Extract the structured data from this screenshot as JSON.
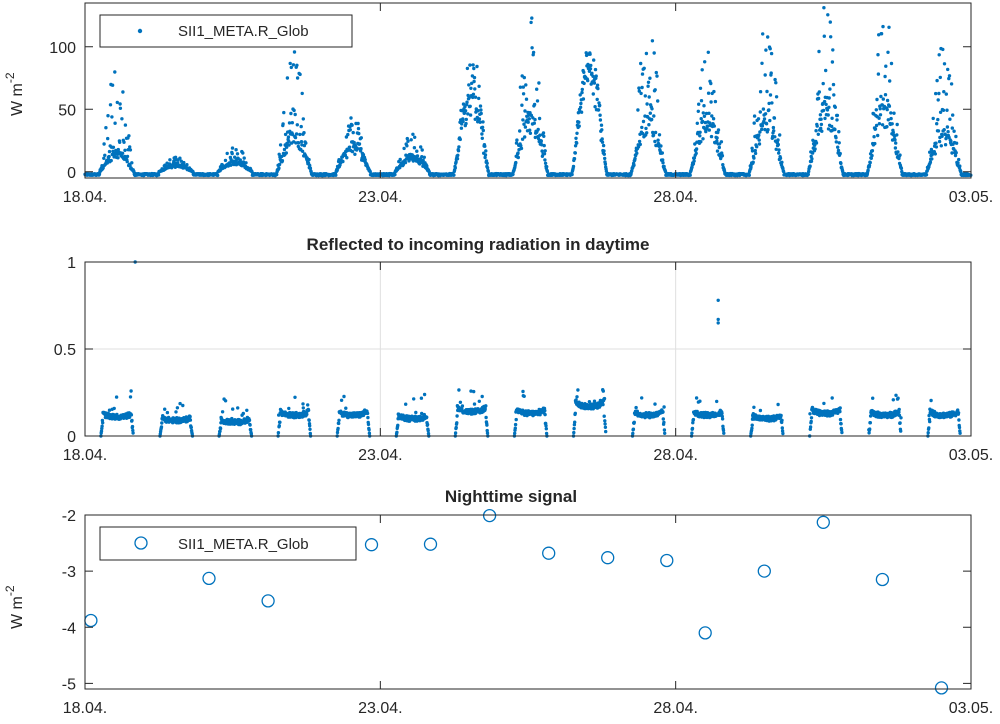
{
  "chart_data": [
    {
      "type": "scatter",
      "title": "",
      "ylabel": "W m",
      "ylabel_sup": "-2",
      "xlim": [
        "18.04.",
        "03.05."
      ],
      "ylim": [
        -5,
        135
      ],
      "x_ticks": [
        "18.04.",
        "23.04.",
        "28.04.",
        "03.05."
      ],
      "y_ticks": [
        0,
        50,
        100
      ],
      "grid": false,
      "legend_position": "top-left",
      "marker": "dot",
      "series": [
        {
          "name": "SII1_META.R_Glob",
          "color": "#0072BD",
          "day_peaks": [
            {
              "date": "18.04.",
              "peak": 85,
              "base": 15
            },
            {
              "date": "19.04.",
              "peak": 12,
              "base": 5
            },
            {
              "date": "20.04.",
              "peak": 22,
              "base": 8
            },
            {
              "date": "21.04.",
              "peak": 100,
              "base": 30
            },
            {
              "date": "22.04.",
              "peak": 48,
              "base": 20
            },
            {
              "date": "23.04.",
              "peak": 32,
              "base": 12
            },
            {
              "date": "24.04.",
              "peak": 100,
              "base": 60
            },
            {
              "date": "25.04.",
              "peak": 128,
              "base": 40
            },
            {
              "date": "26.04.",
              "peak": 102,
              "base": 80
            },
            {
              "date": "27.04.",
              "peak": 122,
              "base": 40
            },
            {
              "date": "28.04.",
              "peak": 105,
              "base": 40
            },
            {
              "date": "29.04.",
              "peak": 120,
              "base": 40
            },
            {
              "date": "30.04.",
              "peak": 135,
              "base": 50
            },
            {
              "date": "01.05.",
              "peak": 133,
              "base": 50
            },
            {
              "date": "02.05.",
              "peak": 107,
              "base": 30
            }
          ]
        }
      ]
    },
    {
      "type": "scatter",
      "title": "Reflected to incoming radiation in daytime",
      "xlim": [
        "18.04.",
        "03.05."
      ],
      "ylim": [
        0,
        1
      ],
      "x_ticks": [
        "18.04.",
        "23.04.",
        "28.04.",
        "03.05."
      ],
      "y_ticks": [
        0,
        0.5,
        1
      ],
      "grid": true,
      "marker": "dot",
      "series": [
        {
          "color": "#0072BD",
          "day_arcs": [
            {
              "date": "18.04.",
              "level": 0.11
            },
            {
              "date": "19.04.",
              "level": 0.09
            },
            {
              "date": "20.04.",
              "level": 0.08
            },
            {
              "date": "21.04.",
              "level": 0.12
            },
            {
              "date": "22.04.",
              "level": 0.12
            },
            {
              "date": "23.04.",
              "level": 0.1
            },
            {
              "date": "24.04.",
              "level": 0.14
            },
            {
              "date": "25.04.",
              "level": 0.13
            },
            {
              "date": "26.04.",
              "level": 0.17
            },
            {
              "date": "27.04.",
              "level": 0.12
            },
            {
              "date": "28.04.",
              "level": 0.12
            },
            {
              "date": "29.04.",
              "level": 0.1
            },
            {
              "date": "30.04.",
              "level": 0.13
            },
            {
              "date": "01.05.",
              "level": 0.12
            },
            {
              "date": "02.05.",
              "level": 0.12
            }
          ],
          "outliers": [
            {
              "x": "18.04. + 0.85 d",
              "y": 1.0
            },
            {
              "x": "28.04. + 0.72 d",
              "y": 0.78
            },
            {
              "x": "28.04. + 0.72 d",
              "y": 0.67
            },
            {
              "x": "28.04. + 0.72 d",
              "y": 0.65
            }
          ]
        }
      ]
    },
    {
      "type": "scatter",
      "title": "Nighttime signal",
      "ylabel": "W m",
      "ylabel_sup": "-2",
      "xlim": [
        "18.04.",
        "03.05."
      ],
      "ylim": [
        -5.1,
        -2
      ],
      "x_ticks": [
        "18.04.",
        "23.04.",
        "28.04.",
        "03.05."
      ],
      "y_ticks": [
        -5,
        -4,
        -3,
        -2
      ],
      "grid": false,
      "legend_position": "top-left",
      "marker": "open-circle",
      "series": [
        {
          "name": "SII1_META.R_Glob",
          "color": "#0072BD",
          "x_days_since_18_04": [
            0.1,
            2.1,
            3.1,
            4.85,
            5.85,
            6.85,
            7.85,
            8.85,
            9.85,
            10.5,
            11.5,
            12.5,
            13.5,
            14.5
          ],
          "y": [
            -3.88,
            -3.13,
            -3.53,
            -2.53,
            -2.52,
            -2.01,
            -2.68,
            -2.76,
            -2.81,
            -4.1,
            -3.0,
            -2.13,
            -3.15,
            -5.08
          ]
        }
      ]
    }
  ]
}
